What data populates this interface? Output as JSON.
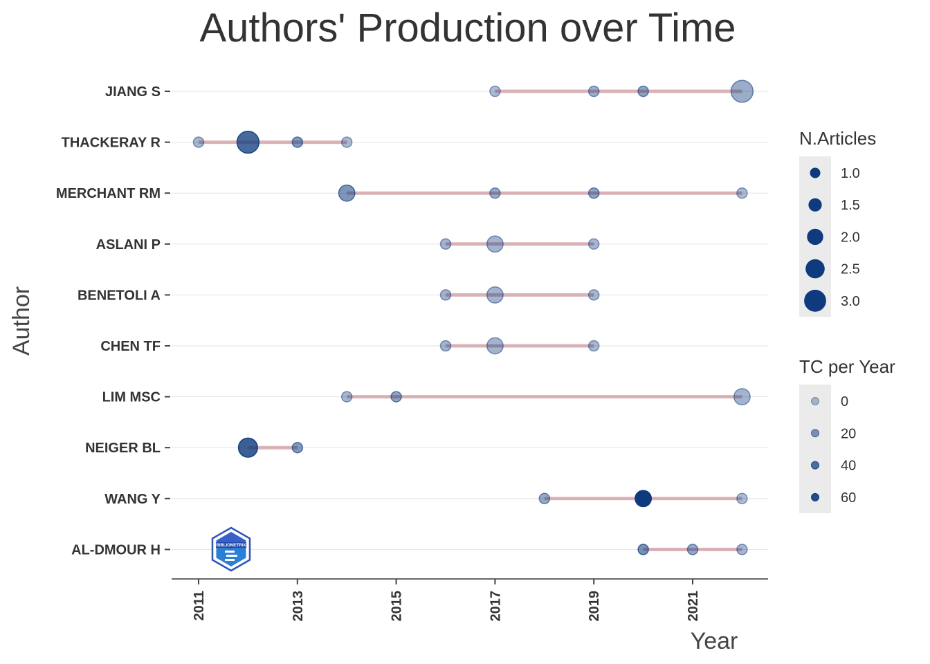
{
  "chart_data": {
    "type": "scatter",
    "title": "Authors' Production over Time",
    "xlabel": "Year",
    "ylabel": "Author",
    "x_ticks": [
      2011,
      2013,
      2015,
      2017,
      2019,
      2021
    ],
    "xlim": [
      2010.5,
      2022.5
    ],
    "authors": [
      "JIANG S",
      "THACKERAY R",
      "MERCHANT RM",
      "ASLANI P",
      "BENETOLI A",
      "CHEN TF",
      "LIM MSC",
      "NEIGER BL",
      "WANG Y",
      "AL-DMOUR H"
    ],
    "segments": [
      {
        "author": "JIANG S",
        "start": 2017,
        "end": 2022
      },
      {
        "author": "THACKERAY R",
        "start": 2011,
        "end": 2014
      },
      {
        "author": "MERCHANT RM",
        "start": 2014,
        "end": 2022
      },
      {
        "author": "ASLANI P",
        "start": 2016,
        "end": 2019
      },
      {
        "author": "BENETOLI A",
        "start": 2016,
        "end": 2019
      },
      {
        "author": "CHEN TF",
        "start": 2016,
        "end": 2019
      },
      {
        "author": "LIM MSC",
        "start": 2014,
        "end": 2022
      },
      {
        "author": "NEIGER BL",
        "start": 2012,
        "end": 2013
      },
      {
        "author": "WANG Y",
        "start": 2018,
        "end": 2022
      },
      {
        "author": "AL-DMOUR H",
        "start": 2020,
        "end": 2022
      }
    ],
    "points": [
      {
        "author": "JIANG S",
        "year": 2017,
        "articles": 1,
        "tc_per_year": 2
      },
      {
        "author": "JIANG S",
        "year": 2019,
        "articles": 1,
        "tc_per_year": 8
      },
      {
        "author": "JIANG S",
        "year": 2020,
        "articles": 1,
        "tc_per_year": 14
      },
      {
        "author": "JIANG S",
        "year": 2022,
        "articles": 3,
        "tc_per_year": 10
      },
      {
        "author": "THACKERAY R",
        "year": 2011,
        "articles": 1,
        "tc_per_year": 5
      },
      {
        "author": "THACKERAY R",
        "year": 2012,
        "articles": 3,
        "tc_per_year": 45
      },
      {
        "author": "THACKERAY R",
        "year": 2013,
        "articles": 1,
        "tc_per_year": 20
      },
      {
        "author": "THACKERAY R",
        "year": 2014,
        "articles": 1,
        "tc_per_year": 3
      },
      {
        "author": "MERCHANT RM",
        "year": 2014,
        "articles": 2,
        "tc_per_year": 22
      },
      {
        "author": "MERCHANT RM",
        "year": 2017,
        "articles": 1,
        "tc_per_year": 10
      },
      {
        "author": "MERCHANT RM",
        "year": 2019,
        "articles": 1,
        "tc_per_year": 15
      },
      {
        "author": "MERCHANT RM",
        "year": 2022,
        "articles": 1,
        "tc_per_year": 3
      },
      {
        "author": "ASLANI P",
        "year": 2016,
        "articles": 1,
        "tc_per_year": 6
      },
      {
        "author": "ASLANI P",
        "year": 2017,
        "articles": 2,
        "tc_per_year": 6
      },
      {
        "author": "ASLANI P",
        "year": 2019,
        "articles": 1,
        "tc_per_year": 4
      },
      {
        "author": "BENETOLI A",
        "year": 2016,
        "articles": 1,
        "tc_per_year": 6
      },
      {
        "author": "BENETOLI A",
        "year": 2017,
        "articles": 2,
        "tc_per_year": 6
      },
      {
        "author": "BENETOLI A",
        "year": 2019,
        "articles": 1,
        "tc_per_year": 4
      },
      {
        "author": "CHEN TF",
        "year": 2016,
        "articles": 1,
        "tc_per_year": 6
      },
      {
        "author": "CHEN TF",
        "year": 2017,
        "articles": 2,
        "tc_per_year": 6
      },
      {
        "author": "CHEN TF",
        "year": 2019,
        "articles": 1,
        "tc_per_year": 4
      },
      {
        "author": "LIM MSC",
        "year": 2014,
        "articles": 1,
        "tc_per_year": 5
      },
      {
        "author": "LIM MSC",
        "year": 2015,
        "articles": 1,
        "tc_per_year": 15
      },
      {
        "author": "LIM MSC",
        "year": 2022,
        "articles": 2,
        "tc_per_year": 6
      },
      {
        "author": "NEIGER BL",
        "year": 2012,
        "articles": 2.5,
        "tc_per_year": 50
      },
      {
        "author": "NEIGER BL",
        "year": 2013,
        "articles": 1,
        "tc_per_year": 20
      },
      {
        "author": "WANG Y",
        "year": 2018,
        "articles": 1,
        "tc_per_year": 12
      },
      {
        "author": "WANG Y",
        "year": 2020,
        "articles": 2,
        "tc_per_year": 70
      },
      {
        "author": "WANG Y",
        "year": 2022,
        "articles": 1,
        "tc_per_year": 2
      },
      {
        "author": "AL-DMOUR H",
        "year": 2020,
        "articles": 1,
        "tc_per_year": 25
      },
      {
        "author": "AL-DMOUR H",
        "year": 2021,
        "articles": 1,
        "tc_per_year": 12
      },
      {
        "author": "AL-DMOUR H",
        "year": 2022,
        "articles": 1,
        "tc_per_year": 5
      }
    ],
    "grid": true,
    "legend_position": "right",
    "point_color": "#0f3a7d",
    "segment_color": "#c07a82",
    "legends": [
      {
        "title": "N.Articles",
        "labels": [
          "1.0",
          "1.5",
          "2.0",
          "2.5",
          "3.0"
        ],
        "values": [
          1,
          1.5,
          2,
          2.5,
          3
        ]
      },
      {
        "title": "TC per Year",
        "labels": [
          "0",
          "20",
          "40",
          "60"
        ],
        "values": [
          0,
          20,
          40,
          60
        ]
      }
    ]
  },
  "logo": {
    "text": "BIBLIOMETRIX"
  }
}
